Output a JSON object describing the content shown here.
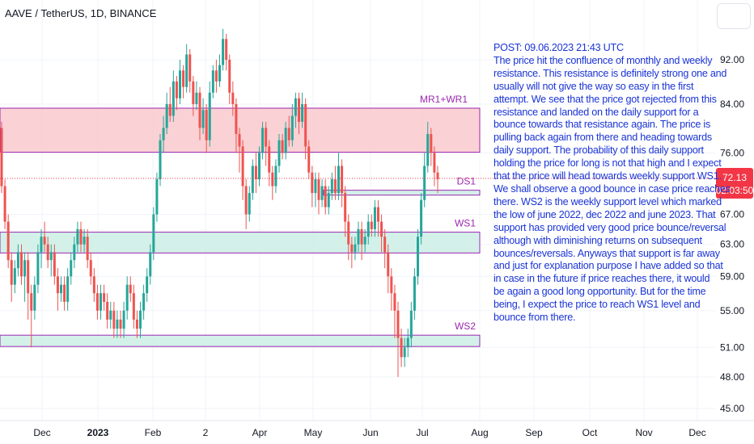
{
  "header": {
    "title": "AAVE / TetherUS, 1D, BINANCE"
  },
  "note_lines": [
    "POST: 09.06.2023 21:43 UTC",
    "The price hit the confluence of monthly and weekly",
    "resistance. This resistance is definitely strong one and",
    "usually will not give the way so easy in the first",
    "attempt. We see that the price got rejected from this",
    "resistance and landed on the daily support for a",
    "bounce towards that resistance again. The price is",
    "pulling back again from there and heading towards",
    "daily support. The probability of this daily support",
    "holding the price for long is not that high and I expect",
    "that the price will head towards weekly support WS1.",
    "We shall observe a good bounce in case price reaches",
    "there. WS2 is the weekly support level which marked",
    "the low of june 2022, dec 2022 and june 2023. That",
    "support has provided very good price bounce/reversal",
    "although with diminishing returns on subsequent",
    "bounces/reversals. Anyways that support is far away",
    "and just for explanation purpose I have added so that",
    "in case in the future if price reaches there, it would",
    "be again a good long opportunity. But for the time",
    "being, I expect the price to reach WS1 level and",
    "bounce from there."
  ],
  "price_tag": {
    "price": "72.13",
    "countdown": "02:03:50"
  },
  "colors": {
    "up": "#26a69a",
    "down": "#ef5350",
    "resistance_fill": "#f9c9cc",
    "support_fill": "#cbeee5",
    "zone_border": "#9c27b0",
    "note_text": "#1a34d6",
    "price_tag": "#f23645"
  },
  "chart_data": {
    "type": "candlestick",
    "y_axis": {
      "scale": "log",
      "ticks": [
        92.0,
        84.0,
        76.0,
        72.13,
        67.0,
        63.0,
        59.0,
        55.0,
        51.0,
        48.0,
        45.0
      ],
      "tick_labels": [
        "92.00",
        "84.00",
        "76.00",
        "",
        "67.00",
        "63.00",
        "59.00",
        "55.00",
        "51.00",
        "48.00",
        "45.00"
      ]
    },
    "x_axis": {
      "tick_labels": [
        "Dec",
        "2023",
        "Feb",
        "2",
        "Apr",
        "May",
        "Jun",
        "Jul",
        "Aug",
        "Sep",
        "Oct",
        "Nov",
        "Dec"
      ],
      "bold_labels": [
        "2023"
      ]
    },
    "zones": [
      {
        "label": "MR1+WR1",
        "type": "resistance",
        "low": 76.1,
        "high": 83.3
      },
      {
        "label": "DS1",
        "type": "support",
        "low": 69.7,
        "high": 70.4
      },
      {
        "label": "WS1",
        "type": "support",
        "low": 61.9,
        "high": 64.6
      },
      {
        "label": "WS2",
        "type": "support",
        "low": 51.1,
        "high": 52.3
      }
    ],
    "last_price": 72.13,
    "candles": [
      [
        80,
        71,
        81,
        70
      ],
      [
        71,
        66,
        72,
        65
      ],
      [
        66,
        61,
        67,
        60
      ],
      [
        61,
        58,
        62,
        56
      ],
      [
        58,
        60,
        61,
        57
      ],
      [
        60,
        62,
        63,
        59
      ],
      [
        62,
        59,
        63,
        58
      ],
      [
        59,
        61,
        62,
        56
      ],
      [
        61,
        57,
        62,
        54
      ],
      [
        57,
        55,
        58,
        51
      ],
      [
        55,
        58,
        59,
        54
      ],
      [
        58,
        62,
        63,
        57
      ],
      [
        62,
        64,
        65,
        60
      ],
      [
        64,
        63,
        66,
        62
      ],
      [
        63,
        61,
        64,
        60
      ],
      [
        61,
        62,
        63,
        59
      ],
      [
        62,
        59,
        63,
        58
      ],
      [
        59,
        57,
        60,
        55
      ],
      [
        57,
        58,
        59,
        56
      ],
      [
        58,
        56,
        59,
        55
      ],
      [
        56,
        59,
        60,
        55
      ],
      [
        59,
        61,
        62,
        58
      ],
      [
        61,
        63,
        64,
        60
      ],
      [
        63,
        65,
        66,
        62
      ],
      [
        65,
        63,
        66,
        62
      ],
      [
        63,
        64,
        65,
        62
      ],
      [
        64,
        61,
        65,
        60
      ],
      [
        61,
        59,
        62,
        58
      ],
      [
        59,
        57,
        60,
        56
      ],
      [
        57,
        55,
        58,
        54
      ],
      [
        55,
        57,
        58,
        54
      ],
      [
        57,
        56,
        58,
        55
      ],
      [
        56,
        54,
        57,
        53
      ],
      [
        54,
        55,
        56,
        53
      ],
      [
        55,
        53,
        56,
        52
      ],
      [
        53,
        54,
        55,
        52
      ],
      [
        54,
        53,
        55,
        52
      ],
      [
        53,
        55,
        56,
        52
      ],
      [
        55,
        58,
        59,
        54
      ],
      [
        58,
        57,
        59,
        56
      ],
      [
        57,
        54,
        58,
        53
      ],
      [
        54,
        53,
        55,
        52
      ],
      [
        53,
        55,
        56,
        52
      ],
      [
        55,
        57,
        58,
        54
      ],
      [
        57,
        59,
        60,
        56
      ],
      [
        59,
        62,
        63,
        58
      ],
      [
        62,
        67,
        68,
        61
      ],
      [
        67,
        72,
        73,
        66
      ],
      [
        72,
        78,
        79,
        71
      ],
      [
        78,
        80,
        82,
        76
      ],
      [
        80,
        84,
        86,
        79
      ],
      [
        84,
        82,
        87,
        81
      ],
      [
        82,
        88,
        90,
        81
      ],
      [
        88,
        85,
        89,
        83
      ],
      [
        85,
        90,
        92,
        84
      ],
      [
        90,
        87,
        91,
        85
      ],
      [
        87,
        93,
        95,
        86
      ],
      [
        93,
        88,
        94,
        86
      ],
      [
        88,
        84,
        89,
        82
      ],
      [
        84,
        86,
        88,
        83
      ],
      [
        86,
        80,
        87,
        78
      ],
      [
        80,
        83,
        85,
        79
      ],
      [
        83,
        78,
        84,
        76
      ],
      [
        78,
        86,
        88,
        77
      ],
      [
        86,
        90,
        91,
        85
      ],
      [
        90,
        88,
        92,
        86
      ],
      [
        88,
        91,
        93,
        87
      ],
      [
        91,
        96,
        98,
        90
      ],
      [
        96,
        92,
        97,
        90
      ],
      [
        92,
        86,
        93,
        84
      ],
      [
        86,
        84,
        88,
        82
      ],
      [
        84,
        79,
        85,
        76
      ],
      [
        79,
        77,
        80,
        73
      ],
      [
        77,
        71,
        78,
        69
      ],
      [
        71,
        67,
        72,
        65
      ],
      [
        67,
        70,
        71,
        66
      ],
      [
        70,
        74,
        75,
        69
      ],
      [
        74,
        72,
        76,
        70
      ],
      [
        72,
        76,
        77,
        71
      ],
      [
        76,
        80,
        81,
        75
      ],
      [
        80,
        77,
        81,
        74
      ],
      [
        77,
        73,
        78,
        71
      ],
      [
        73,
        71,
        74,
        69
      ],
      [
        71,
        74,
        75,
        70
      ],
      [
        74,
        78,
        79,
        73
      ],
      [
        78,
        76,
        79,
        75
      ],
      [
        76,
        80,
        81,
        75
      ],
      [
        80,
        78,
        82,
        77
      ],
      [
        78,
        82,
        84,
        77
      ],
      [
        82,
        85,
        86,
        80
      ],
      [
        85,
        81,
        86,
        79
      ],
      [
        81,
        84,
        86,
        80
      ],
      [
        84,
        77,
        85,
        75
      ],
      [
        77,
        73,
        78,
        72
      ],
      [
        73,
        70,
        74,
        68
      ],
      [
        70,
        72,
        73,
        68
      ],
      [
        72,
        69,
        73,
        67
      ],
      [
        69,
        71,
        72,
        68
      ],
      [
        71,
        68,
        72,
        67
      ],
      [
        68,
        70,
        71,
        67
      ],
      [
        70,
        72,
        73,
        69
      ],
      [
        72,
        70,
        74,
        69
      ],
      [
        70,
        74,
        76,
        69
      ],
      [
        74,
        70,
        75,
        68
      ],
      [
        70,
        66,
        71,
        64
      ],
      [
        66,
        63,
        67,
        61
      ],
      [
        63,
        62,
        64,
        60
      ],
      [
        62,
        63,
        64,
        61
      ],
      [
        63,
        65,
        66,
        62
      ],
      [
        65,
        63,
        66,
        61
      ],
      [
        63,
        64,
        65,
        62
      ],
      [
        64,
        66,
        67,
        63
      ],
      [
        66,
        65,
        67,
        64
      ],
      [
        65,
        68,
        69,
        64
      ],
      [
        68,
        66,
        69,
        64
      ],
      [
        66,
        64,
        67,
        62
      ],
      [
        64,
        62,
        65,
        60
      ],
      [
        62,
        59,
        63,
        57
      ],
      [
        59,
        57,
        60,
        55
      ],
      [
        57,
        55,
        58,
        52
      ],
      [
        55,
        52,
        56,
        48
      ],
      [
        52,
        50,
        53,
        49
      ],
      [
        50,
        51,
        52,
        49
      ],
      [
        51,
        52,
        53,
        50
      ],
      [
        52,
        55,
        56,
        51
      ],
      [
        55,
        59,
        60,
        54
      ],
      [
        59,
        64,
        65,
        58
      ],
      [
        64,
        69,
        70,
        63
      ],
      [
        69,
        74,
        76,
        68
      ],
      [
        74,
        79,
        81,
        73
      ],
      [
        79,
        76,
        80,
        74
      ],
      [
        76,
        73,
        77,
        71
      ],
      [
        73,
        72,
        74,
        70
      ]
    ]
  }
}
